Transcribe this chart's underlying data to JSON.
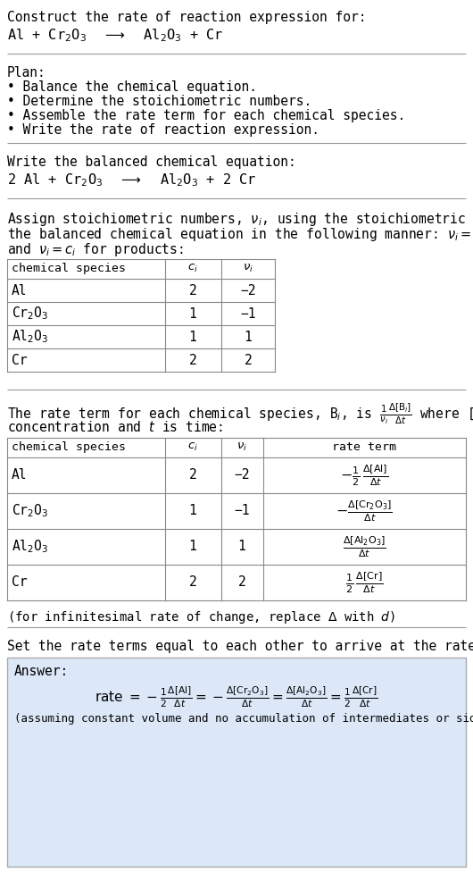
{
  "bg_color": "#ffffff",
  "text_color": "#000000",
  "line_color": "#aaaaaa",
  "answer_bg": "#e8f0fe",
  "font_family": "DejaVu Sans Mono",
  "font_size": 10.5,
  "font_size_small": 9.5,
  "table1_species": [
    "Al",
    "Cr₂O₃",
    "Al₂O₃",
    "Cr"
  ],
  "table1_ci": [
    "2",
    "1",
    "1",
    "2"
  ],
  "table1_ni": [
    "−2",
    "−1",
    "1",
    "2"
  ],
  "table2_ci": [
    "2",
    "1",
    "1",
    "2"
  ],
  "table2_ni": [
    "−2",
    "−1",
    "1",
    "2"
  ]
}
